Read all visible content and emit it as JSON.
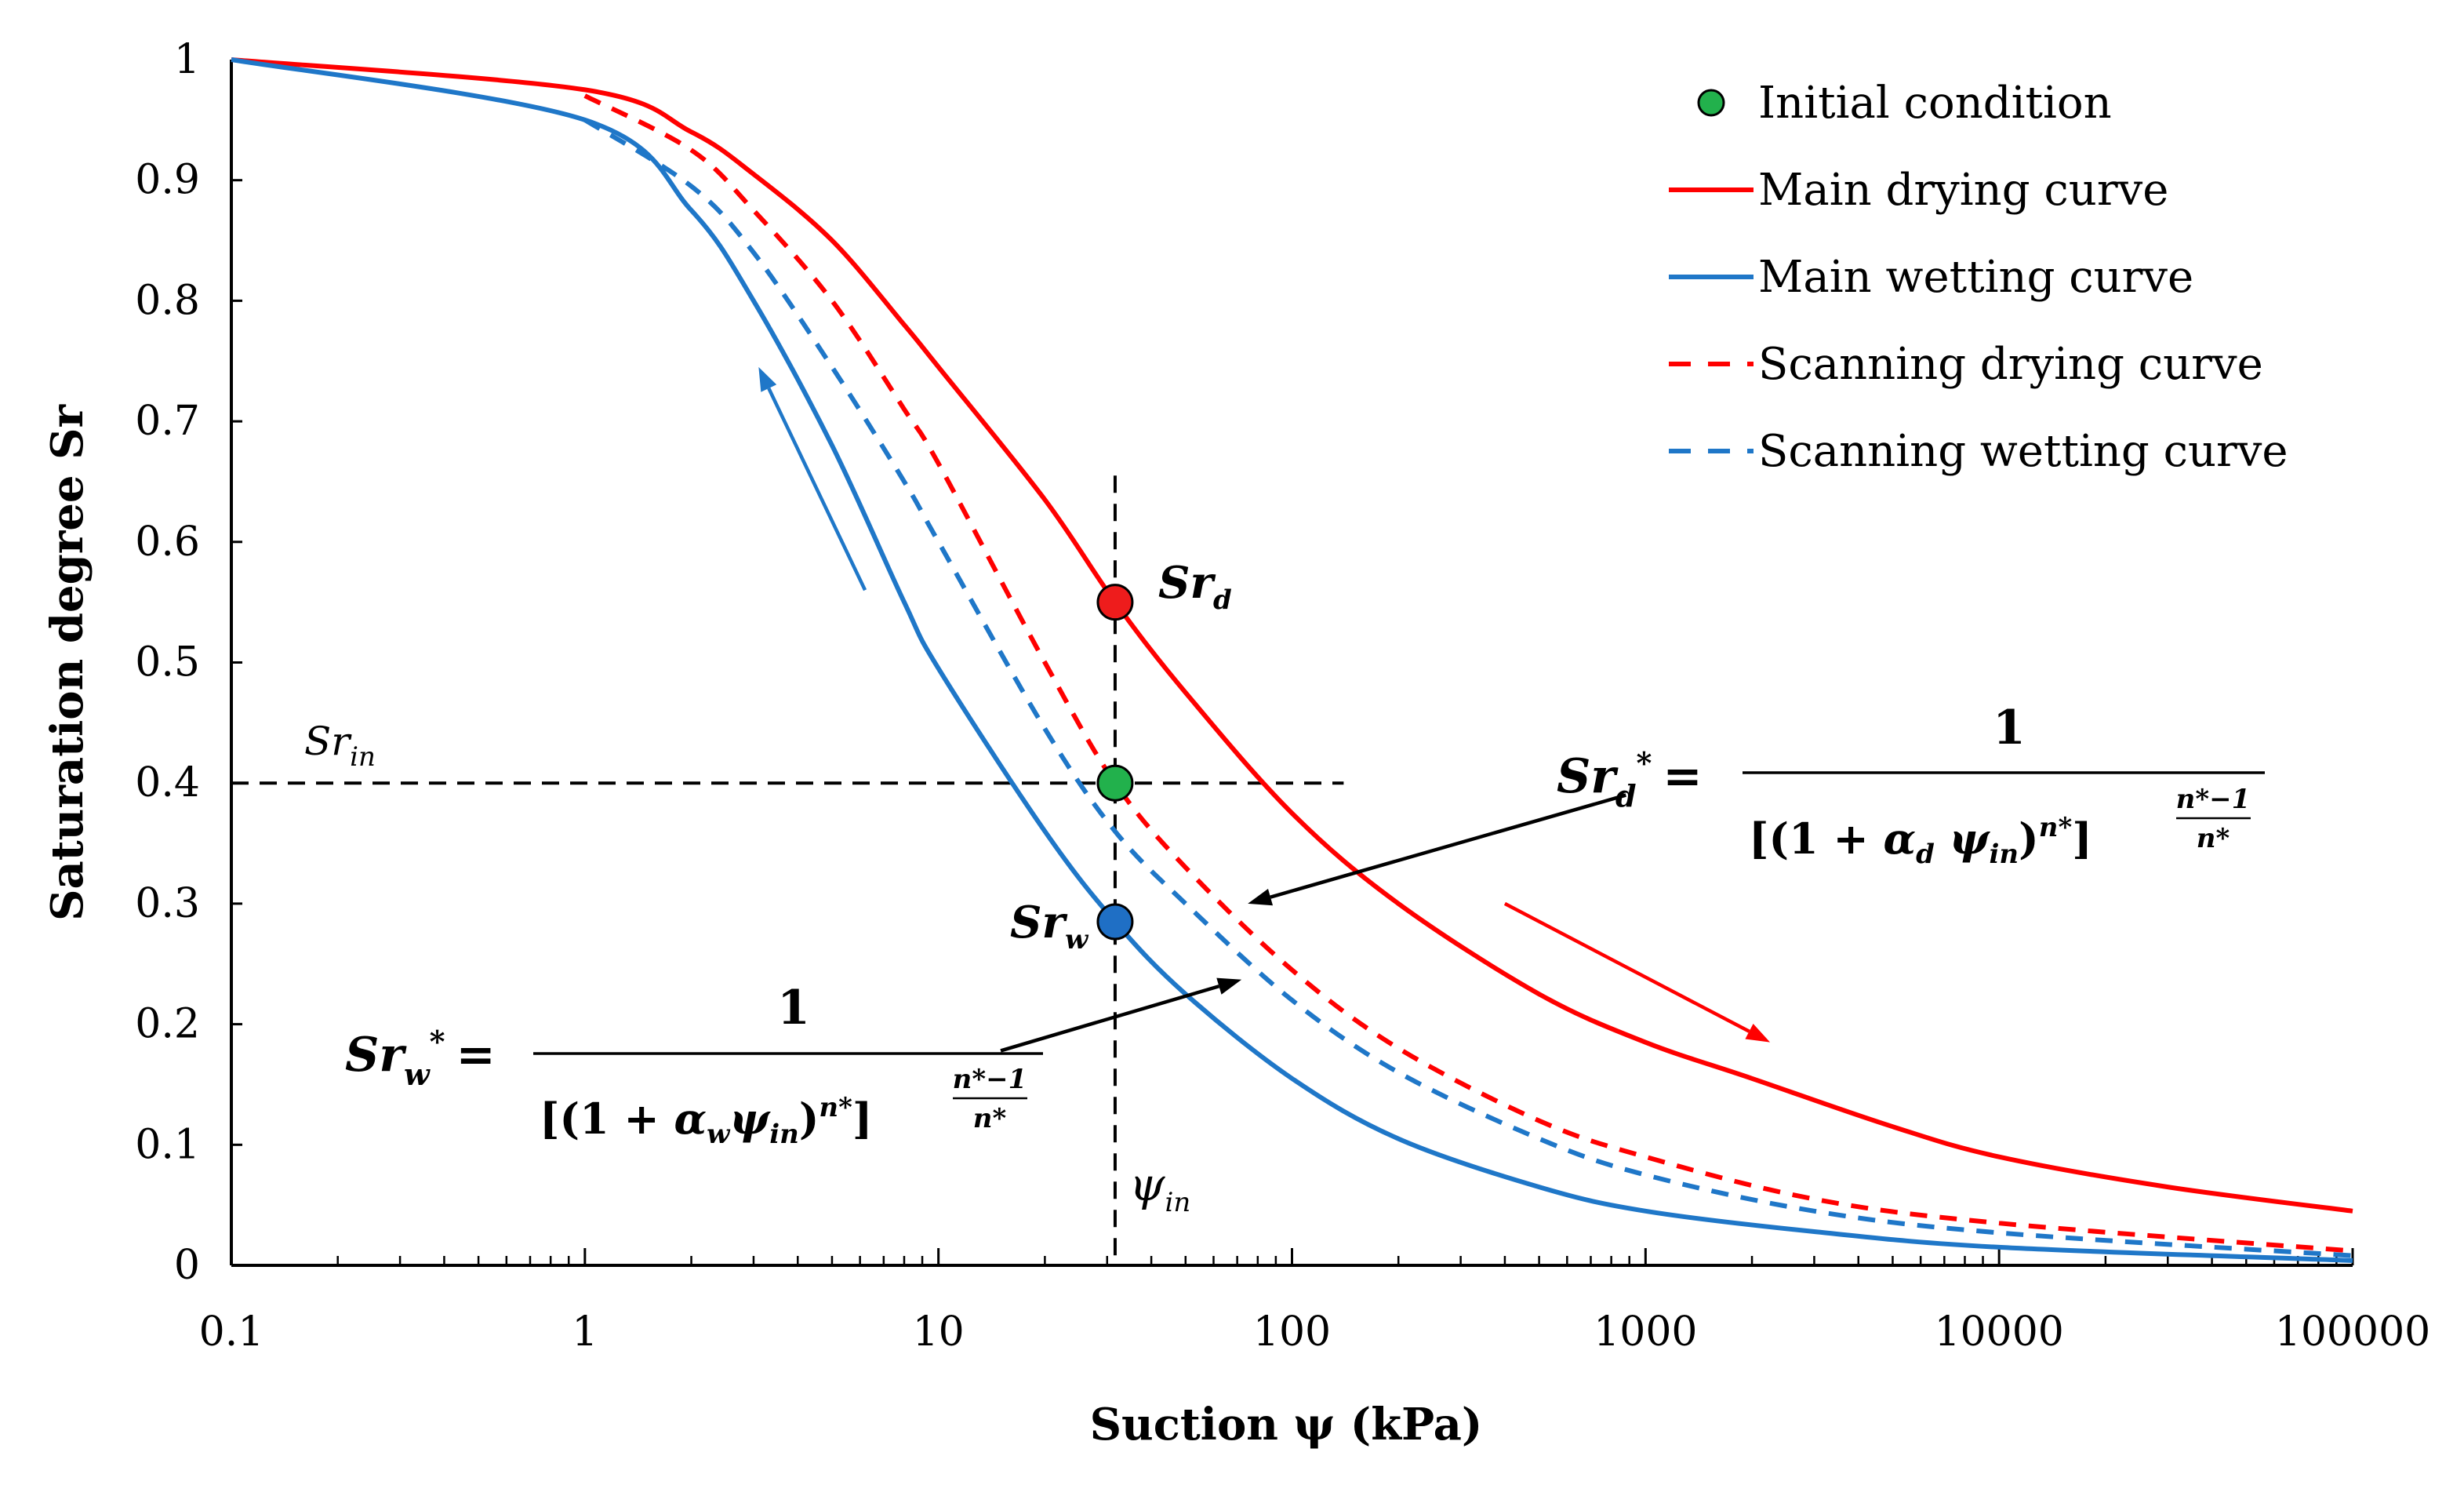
{
  "chart_data": {
    "type": "line",
    "xscale": "log",
    "xlabel": "Suction ψ (kPa)",
    "ylabel": "Saturation degree Sr",
    "xlim": [
      0.1,
      100000
    ],
    "ylim": [
      0,
      1
    ],
    "x_ticks": [
      "0.1",
      "1",
      "10",
      "100",
      "1000",
      "10000",
      "100000"
    ],
    "y_ticks": [
      "0",
      "0.1",
      "0.2",
      "0.3",
      "0.4",
      "0.5",
      "0.6",
      "0.7",
      "0.8",
      "0.9",
      "1"
    ],
    "series": [
      {
        "name": "Main drying curve",
        "color": "#ff0000",
        "dash": "solid",
        "points": [
          [
            0.1,
            1.0
          ],
          [
            1,
            0.975
          ],
          [
            2,
            0.94
          ],
          [
            3,
            0.905
          ],
          [
            5,
            0.85
          ],
          [
            8,
            0.78
          ],
          [
            10,
            0.745
          ],
          [
            20,
            0.635
          ],
          [
            31.6,
            0.55
          ],
          [
            50,
            0.475
          ],
          [
            100,
            0.375
          ],
          [
            200,
            0.3
          ],
          [
            500,
            0.225
          ],
          [
            1000,
            0.185
          ],
          [
            2000,
            0.155
          ],
          [
            5000,
            0.115
          ],
          [
            10000,
            0.09
          ],
          [
            30000,
            0.065
          ],
          [
            100000,
            0.045
          ]
        ]
      },
      {
        "name": "Main wetting curve",
        "color": "#1f77c8",
        "dash": "solid",
        "points": [
          [
            0.1,
            1.0
          ],
          [
            1,
            0.95
          ],
          [
            2,
            0.875
          ],
          [
            3,
            0.8
          ],
          [
            5,
            0.68
          ],
          [
            8,
            0.55
          ],
          [
            10,
            0.495
          ],
          [
            20,
            0.36
          ],
          [
            31.6,
            0.285
          ],
          [
            50,
            0.225
          ],
          [
            100,
            0.155
          ],
          [
            200,
            0.105
          ],
          [
            500,
            0.065
          ],
          [
            1000,
            0.045
          ],
          [
            3000,
            0.028
          ],
          [
            10000,
            0.015
          ],
          [
            100000,
            0.004
          ]
        ]
      },
      {
        "name": "Scanning drying curve",
        "color": "#ff0000",
        "dash": "dashed",
        "points": [
          [
            1,
            0.97
          ],
          [
            2,
            0.925
          ],
          [
            3,
            0.875
          ],
          [
            5,
            0.8
          ],
          [
            8,
            0.71
          ],
          [
            10,
            0.665
          ],
          [
            20,
            0.5
          ],
          [
            31.6,
            0.4
          ],
          [
            50,
            0.33
          ],
          [
            100,
            0.245
          ],
          [
            200,
            0.18
          ],
          [
            500,
            0.12
          ],
          [
            1000,
            0.09
          ],
          [
            3000,
            0.055
          ],
          [
            10000,
            0.035
          ],
          [
            100000,
            0.012
          ]
        ]
      },
      {
        "name": "Scanning wetting curve",
        "color": "#1f77c8",
        "dash": "dashed",
        "points": [
          [
            1,
            0.95
          ],
          [
            2,
            0.895
          ],
          [
            3,
            0.84
          ],
          [
            5,
            0.745
          ],
          [
            8,
            0.65
          ],
          [
            10,
            0.6
          ],
          [
            20,
            0.445
          ],
          [
            31.6,
            0.36
          ],
          [
            50,
            0.3
          ],
          [
            100,
            0.22
          ],
          [
            200,
            0.16
          ],
          [
            500,
            0.105
          ],
          [
            1000,
            0.075
          ],
          [
            3000,
            0.045
          ],
          [
            10000,
            0.027
          ],
          [
            100000,
            0.008
          ]
        ]
      }
    ],
    "markers": [
      {
        "name": "Sr_d",
        "x": 31.6,
        "y": 0.55,
        "color": "#ee1c1c"
      },
      {
        "name": "Initial condition",
        "x": 31.6,
        "y": 0.4,
        "color": "#22b14c"
      },
      {
        "name": "Sr_w",
        "x": 31.6,
        "y": 0.285,
        "color": "#1f6fc5"
      }
    ],
    "reference_lines": {
      "psi_in": 31.6,
      "psi_in_y_top": 0.655,
      "Sr_in": 0.4,
      "Sr_in_x_end": 140
    },
    "arrows": [
      {
        "name": "wetting-arrow",
        "color": "#1f77c8",
        "from": [
          6.2,
          0.56
        ],
        "to": [
          3.1,
          0.745
        ]
      },
      {
        "name": "drying-arrow",
        "color": "#ff0000",
        "from": [
          400,
          0.3
        ],
        "to": [
          2250,
          0.185
        ]
      },
      {
        "name": "sr-d-star-pointer",
        "color": "#000000",
        "from": [
          880,
          0.39
        ],
        "to": [
          75,
          0.3
        ]
      },
      {
        "name": "sr-w-star-pointer",
        "color": "#000000",
        "from": [
          15,
          0.178
        ],
        "to": [
          72,
          0.237
        ]
      }
    ]
  },
  "legend": {
    "items": [
      {
        "label": "Initial condition",
        "kind": "marker",
        "color": "#22b14c"
      },
      {
        "label": "Main drying curve",
        "kind": "line",
        "color": "#ff0000",
        "dash": "solid"
      },
      {
        "label": "Main wetting curve",
        "kind": "line",
        "color": "#1f77c8",
        "dash": "solid"
      },
      {
        "label": "Scanning drying curve",
        "kind": "line",
        "color": "#ff0000",
        "dash": "dashed"
      },
      {
        "label": "Scanning wetting curve",
        "kind": "line",
        "color": "#1f77c8",
        "dash": "dashed"
      }
    ]
  },
  "annotations": {
    "sr_d": {
      "main": "Sr",
      "sub": "d"
    },
    "sr_w": {
      "main": "Sr",
      "sub": "w"
    },
    "sr_in": {
      "main": "Sr",
      "sub": "in"
    },
    "psi_in": {
      "main": "ψ",
      "sub": "in"
    }
  },
  "formulas": {
    "sr_d_star": {
      "lhs_main": "Sr",
      "lhs_sub": "d",
      "lhs_sup": "*",
      "equals": "=",
      "numerator": "1",
      "den_open": "[(",
      "den_one_plus": "1 + ",
      "den_alpha": "α",
      "den_alpha_sub": "d",
      "den_psi": " ψ",
      "den_psi_sub": "in",
      "den_close": ")",
      "den_exp": "n*",
      "den_bracket": "]",
      "frac_exp_num": "n*−1",
      "frac_exp_den": "n*"
    },
    "sr_w_star": {
      "lhs_main": "Sr",
      "lhs_sub": "w",
      "lhs_sup": "*",
      "equals": "=",
      "numerator": "1",
      "den_open": "[(",
      "den_one_plus": "1 + ",
      "den_alpha": "α",
      "den_alpha_sub": "w",
      "den_psi": "ψ",
      "den_psi_sub": "in",
      "den_close": ")",
      "den_exp": "n*",
      "den_bracket": "]",
      "frac_exp_num": "n*−1",
      "frac_exp_den": "n*"
    }
  }
}
